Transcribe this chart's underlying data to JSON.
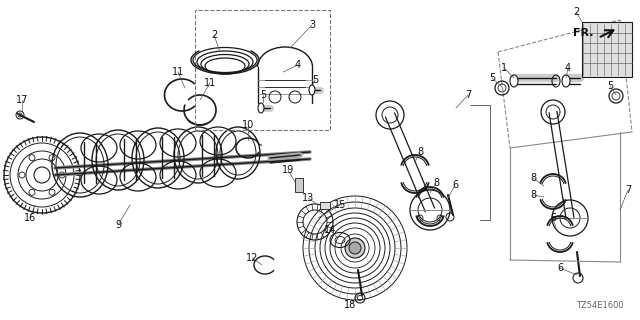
{
  "bg": "#ffffff",
  "lc": "#1a1a1a",
  "gc": "#555555",
  "dpi": 100,
  "part_code": "TZ54E1600",
  "figsize": [
    6.4,
    3.2
  ]
}
